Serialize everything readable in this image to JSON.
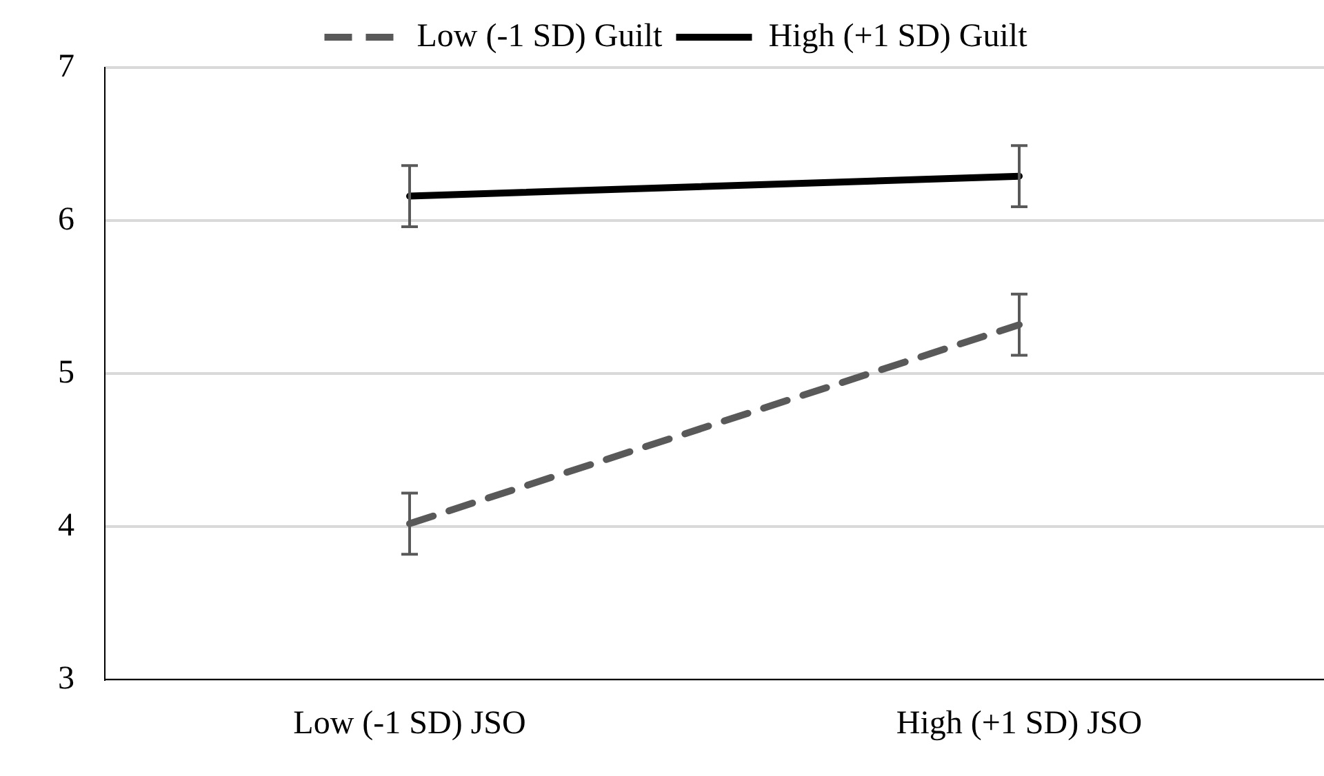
{
  "chart_data": {
    "type": "line",
    "categories": [
      "Low (-1 SD) JSO",
      "High (+1 SD) JSO"
    ],
    "series": [
      {
        "name": "Low (-1 SD) Guilt",
        "color": "#595959",
        "values": [
          4.02,
          5.32
        ],
        "errors": [
          0.2,
          0.2
        ],
        "line_style": "dashed"
      },
      {
        "name": "High (+1 SD) Guilt",
        "color": "#000000",
        "values": [
          6.16,
          6.29
        ],
        "errors": [
          0.2,
          0.2
        ],
        "line_style": "solid"
      }
    ],
    "ylim": [
      3,
      7
    ],
    "yticks": [
      3,
      4,
      5,
      6,
      7
    ],
    "grid": "y",
    "legend": "top",
    "marker": "none"
  }
}
